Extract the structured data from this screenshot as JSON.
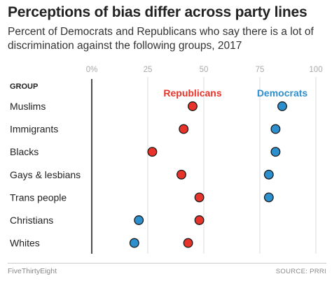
{
  "header": {
    "title": "Perceptions of bias differ across party lines",
    "subtitle": "Percent of Democrats and Republicans who say there is a lot of discrimination against the following groups, 2017"
  },
  "chart_data": {
    "type": "scatter",
    "title": "Perceptions of bias differ across party lines",
    "subtitle": "Percent of Democrats and Republicans who say there is a lot of discrimination against the following groups, 2017",
    "category_header": "GROUP",
    "categories": [
      "Muslims",
      "Immigrants",
      "Blacks",
      "Gays & lesbians",
      "Trans people",
      "Christians",
      "Whites"
    ],
    "x_ticks": [
      "0%",
      "25",
      "50",
      "75",
      "100"
    ],
    "xlim": [
      0,
      100
    ],
    "series": [
      {
        "name": "Republicans",
        "color": "#e8332a",
        "values": [
          45,
          41,
          27,
          40,
          48,
          48,
          43
        ]
      },
      {
        "name": "Democrats",
        "color": "#2e8fcd",
        "values": [
          85,
          82,
          82,
          79,
          79,
          21,
          19
        ]
      }
    ],
    "grid": true
  },
  "footer": {
    "brand": "FiveThirtyEight",
    "source": "SOURCE: PRRI"
  }
}
